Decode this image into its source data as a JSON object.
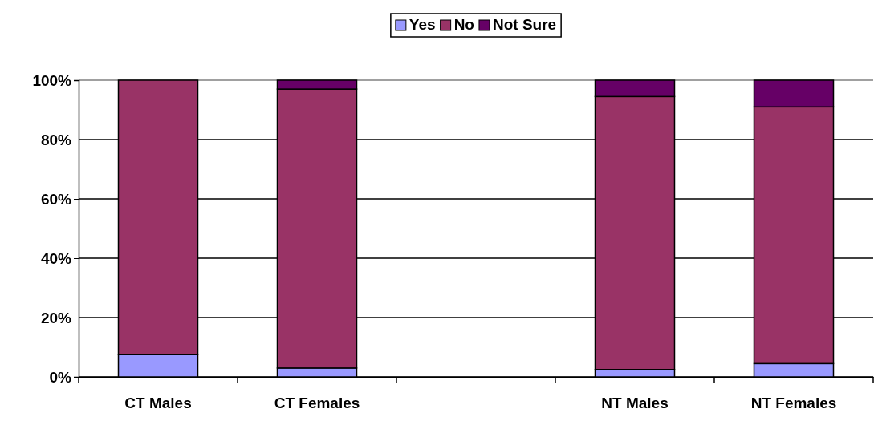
{
  "chart_data": {
    "type": "bar",
    "stacked": true,
    "categories": [
      "CT Males",
      "CT Females",
      null,
      "NT Males",
      "NT Females"
    ],
    "series": [
      {
        "name": "Yes",
        "color": "#9999ff",
        "values": [
          7.5,
          3,
          null,
          2.5,
          4.5
        ]
      },
      {
        "name": "No",
        "color": "#993366",
        "values": [
          92.5,
          94,
          null,
          92,
          86.5
        ]
      },
      {
        "name": "Not Sure",
        "color": "#660066",
        "values": [
          0,
          3,
          null,
          5.5,
          9
        ]
      }
    ],
    "ylim": [
      0,
      100
    ],
    "yticks": [
      {
        "value": 0,
        "label": "0%"
      },
      {
        "value": 20,
        "label": "20%"
      },
      {
        "value": 40,
        "label": "40%"
      },
      {
        "value": 60,
        "label": "60%"
      },
      {
        "value": 80,
        "label": "80%"
      },
      {
        "value": 100,
        "label": "100%"
      }
    ],
    "grid": "y",
    "legend": "top"
  }
}
